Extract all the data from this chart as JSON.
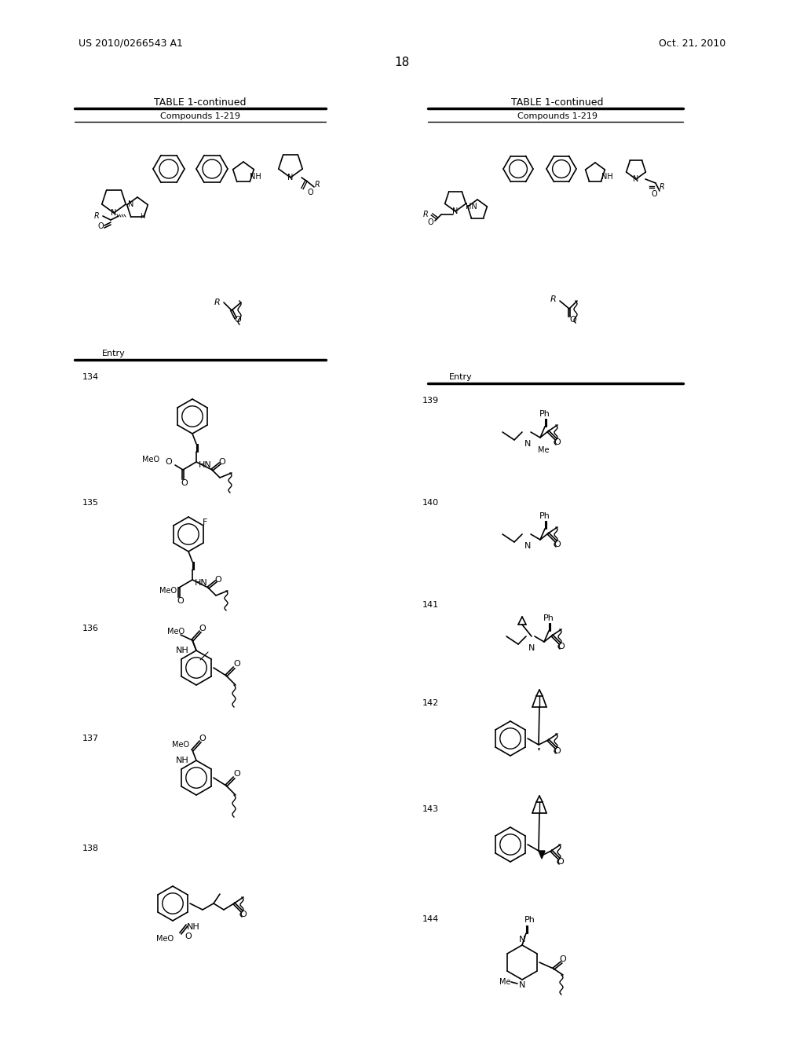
{
  "background_color": "#ffffff",
  "page_number": "18",
  "top_left_text": "US 2010/0266543 A1",
  "top_right_text": "Oct. 21, 2010",
  "table_title": "TABLE 1-continued",
  "table_subtitle": "Compounds 1-219",
  "entry_label": "Entry",
  "left_entries": [
    "134",
    "135",
    "136",
    "137",
    "138"
  ],
  "right_entries": [
    "139",
    "140",
    "141",
    "142",
    "143",
    "144"
  ],
  "figsize": [
    10.24,
    13.2
  ],
  "dpi": 100
}
